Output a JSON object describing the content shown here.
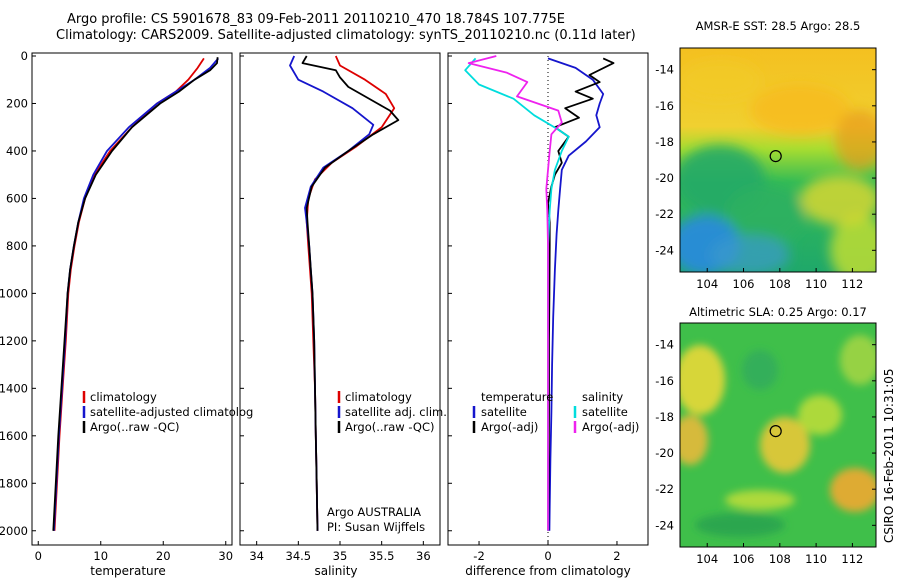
{
  "header": {
    "title_line1": "Argo profile: CS 5901678_83 09-Feb-2011 20110210_470 18.784S 107.775E",
    "title_line2": "Climatology: CARS2009. Satellite-adjusted climatology: synTS_20110210.nc (0.11d later)"
  },
  "chart_data": [
    {
      "type": "line",
      "id": "temperature",
      "xlabel": "temperature",
      "xlim": [
        -1,
        31
      ],
      "xticks": [
        0,
        10,
        20,
        30
      ],
      "ylim": [
        0,
        2060
      ],
      "yticks": [
        0,
        200,
        400,
        600,
        800,
        1000,
        1200,
        1400,
        1600,
        1800,
        2000
      ],
      "y_reversed": true,
      "legend": [
        "climatology",
        "satellite-adjusted climatolog",
        "Argo(..raw -QC)"
      ],
      "series": [
        {
          "name": "climatology",
          "color": "#dd0000",
          "points": [
            [
              26.5,
              10
            ],
            [
              25.5,
              50
            ],
            [
              24,
              100
            ],
            [
              22,
              150
            ],
            [
              19,
              200
            ],
            [
              15,
              300
            ],
            [
              11.5,
              400
            ],
            [
              9,
              500
            ],
            [
              7.5,
              600
            ],
            [
              6.5,
              700
            ],
            [
              5.8,
              800
            ],
            [
              5.2,
              900
            ],
            [
              4.8,
              1000
            ],
            [
              4.4,
              1200
            ],
            [
              3.9,
              1400
            ],
            [
              3.4,
              1600
            ],
            [
              3.0,
              1800
            ],
            [
              2.6,
              2000
            ]
          ]
        },
        {
          "name": "satellite-adjusted climatology",
          "color": "#1515cc",
          "points": [
            [
              28.8,
              10
            ],
            [
              27.5,
              50
            ],
            [
              25,
              100
            ],
            [
              22,
              150
            ],
            [
              19,
              200
            ],
            [
              14.5,
              300
            ],
            [
              11,
              400
            ],
            [
              8.8,
              500
            ],
            [
              7.3,
              600
            ],
            [
              6.4,
              700
            ],
            [
              5.7,
              800
            ],
            [
              5.1,
              900
            ],
            [
              4.7,
              1000
            ],
            [
              4.3,
              1200
            ],
            [
              3.8,
              1400
            ],
            [
              3.3,
              1600
            ],
            [
              2.9,
              1800
            ],
            [
              2.5,
              2000
            ]
          ]
        },
        {
          "name": "Argo(..raw -QC)",
          "color": "#000000",
          "points": [
            [
              28.7,
              5
            ],
            [
              28.6,
              30
            ],
            [
              27.5,
              60
            ],
            [
              25,
              100
            ],
            [
              22.5,
              150
            ],
            [
              19.5,
              200
            ],
            [
              15,
              300
            ],
            [
              11.8,
              400
            ],
            [
              9.2,
              500
            ],
            [
              7.5,
              600
            ],
            [
              6.4,
              700
            ],
            [
              5.7,
              800
            ],
            [
              5.1,
              900
            ],
            [
              4.7,
              1000
            ],
            [
              4.2,
              1200
            ],
            [
              3.7,
              1400
            ],
            [
              3.2,
              1600
            ],
            [
              2.8,
              1800
            ],
            [
              2.4,
              2000
            ]
          ]
        }
      ]
    },
    {
      "type": "line",
      "id": "salinity",
      "xlabel": "salinity",
      "xlim": [
        33.8,
        36.2
      ],
      "xticks": [
        34,
        34.5,
        35,
        35.5,
        36
      ],
      "ylim": [
        0,
        2060
      ],
      "y_reversed": true,
      "legend": [
        "climatology",
        "satellite adj. clim.",
        "Argo(..raw -QC)"
      ],
      "series": [
        {
          "name": "climatology",
          "color": "#dd0000",
          "points": [
            [
              34.95,
              0
            ],
            [
              35.0,
              40
            ],
            [
              35.3,
              100
            ],
            [
              35.55,
              160
            ],
            [
              35.65,
              220
            ],
            [
              35.5,
              300
            ],
            [
              35.2,
              380
            ],
            [
              34.9,
              450
            ],
            [
              34.7,
              520
            ],
            [
              34.62,
              600
            ],
            [
              34.6,
              700
            ],
            [
              34.62,
              800
            ],
            [
              34.64,
              900
            ],
            [
              34.66,
              1000
            ],
            [
              34.68,
              1200
            ],
            [
              34.7,
              1400
            ],
            [
              34.71,
              1600
            ],
            [
              34.72,
              1800
            ],
            [
              34.73,
              2000
            ]
          ]
        },
        {
          "name": "satellite adj. clim.",
          "color": "#1515cc",
          "points": [
            [
              34.45,
              0
            ],
            [
              34.4,
              40
            ],
            [
              34.5,
              100
            ],
            [
              34.8,
              150
            ],
            [
              35.15,
              220
            ],
            [
              35.4,
              290
            ],
            [
              35.35,
              330
            ],
            [
              35.1,
              400
            ],
            [
              34.8,
              470
            ],
            [
              34.65,
              550
            ],
            [
              34.58,
              640
            ],
            [
              34.6,
              700
            ],
            [
              34.63,
              800
            ],
            [
              34.65,
              900
            ],
            [
              34.67,
              1000
            ],
            [
              34.69,
              1200
            ],
            [
              34.7,
              1400
            ],
            [
              34.71,
              1600
            ],
            [
              34.72,
              1800
            ],
            [
              34.73,
              2000
            ]
          ]
        },
        {
          "name": "Argo(..raw -QC)",
          "color": "#000000",
          "points": [
            [
              34.6,
              0
            ],
            [
              34.55,
              30
            ],
            [
              34.95,
              60
            ],
            [
              35.0,
              90
            ],
            [
              35.1,
              130
            ],
            [
              35.45,
              200
            ],
            [
              35.6,
              230
            ],
            [
              35.7,
              270
            ],
            [
              35.4,
              330
            ],
            [
              35.1,
              400
            ],
            [
              34.82,
              470
            ],
            [
              34.66,
              550
            ],
            [
              34.6,
              640
            ],
            [
              34.61,
              700
            ],
            [
              34.63,
              800
            ],
            [
              34.65,
              900
            ],
            [
              34.67,
              1000
            ],
            [
              34.69,
              1200
            ],
            [
              34.7,
              1400
            ],
            [
              34.71,
              1600
            ],
            [
              34.72,
              1800
            ],
            [
              34.73,
              2000
            ]
          ]
        }
      ],
      "annotations": [
        "Argo AUSTRALIA",
        "PI: Susan Wijffels"
      ]
    },
    {
      "type": "line",
      "id": "difference",
      "xlabel": "difference from climatology",
      "xlim": [
        -2.9,
        2.9
      ],
      "xticks": [
        -2,
        0,
        2
      ],
      "ylim": [
        0,
        2060
      ],
      "y_reversed": true,
      "legend_temperature": [
        "temperature",
        "satellite",
        "Argo(-adj)"
      ],
      "legend_salinity": [
        "salinity",
        "satellite",
        "Argo(-adj)"
      ],
      "series": [
        {
          "name": "temperature satellite",
          "color": "#1515cc",
          "points": [
            [
              0,
              10
            ],
            [
              0.8,
              50
            ],
            [
              1.3,
              100
            ],
            [
              1.6,
              160
            ],
            [
              1.5,
              200
            ],
            [
              1.4,
              250
            ],
            [
              1.5,
              300
            ],
            [
              1.1,
              360
            ],
            [
              0.6,
              420
            ],
            [
              0.4,
              480
            ],
            [
              0.35,
              560
            ],
            [
              0.3,
              650
            ],
            [
              0.25,
              750
            ],
            [
              0.2,
              900
            ],
            [
              0.15,
              1100
            ],
            [
              0.12,
              1300
            ],
            [
              0.1,
              1500
            ],
            [
              0.07,
              1700
            ],
            [
              0.05,
              1900
            ],
            [
              0.04,
              2000
            ]
          ]
        },
        {
          "name": "temperature Argo(-adj)",
          "color": "#000000",
          "points": [
            [
              1.6,
              10
            ],
            [
              1.9,
              30
            ],
            [
              1.2,
              80
            ],
            [
              1.5,
              110
            ],
            [
              0.8,
              150
            ],
            [
              1.3,
              180
            ],
            [
              0.5,
              220
            ],
            [
              0.9,
              260
            ],
            [
              0.2,
              300
            ],
            [
              0.6,
              340
            ],
            [
              0.3,
              400
            ],
            [
              0.4,
              450
            ],
            [
              0.2,
              500
            ],
            [
              0.1,
              550
            ],
            [
              0.0,
              620
            ],
            [
              0.05,
              700
            ],
            [
              0.05,
              800
            ],
            [
              0.04,
              1000
            ],
            [
              0.03,
              1200
            ],
            [
              0.03,
              1500
            ],
            [
              0.02,
              1800
            ],
            [
              0.01,
              2000
            ]
          ]
        },
        {
          "name": "salinity satellite",
          "color": "#00dddd",
          "points": [
            [
              -2.1,
              10
            ],
            [
              -2.4,
              60
            ],
            [
              -2.0,
              120
            ],
            [
              -1.0,
              180
            ],
            [
              -0.4,
              250
            ],
            [
              0.3,
              310
            ],
            [
              0.6,
              340
            ],
            [
              0.4,
              400
            ],
            [
              0.2,
              480
            ],
            [
              0.1,
              560
            ],
            [
              0.05,
              650
            ],
            [
              0.0,
              800
            ],
            [
              0.0,
              1000
            ],
            [
              0.0,
              1500
            ],
            [
              0.0,
              2000
            ]
          ]
        },
        {
          "name": "salinity Argo(-adj)",
          "color": "#ee22ee",
          "points": [
            [
              -1.5,
              0
            ],
            [
              -2.3,
              30
            ],
            [
              -1.2,
              70
            ],
            [
              -0.6,
              110
            ],
            [
              -0.9,
              170
            ],
            [
              0.3,
              230
            ],
            [
              0.4,
              280
            ],
            [
              0.1,
              330
            ],
            [
              0.05,
              400
            ],
            [
              0.0,
              480
            ],
            [
              -0.05,
              560
            ],
            [
              -0.02,
              650
            ],
            [
              0.0,
              800
            ],
            [
              0.0,
              1000
            ],
            [
              0.0,
              1500
            ],
            [
              0.0,
              2000
            ]
          ]
        }
      ]
    },
    {
      "type": "heatmap",
      "id": "sst_map",
      "title": "AMSR-E SST: 28.5 Argo: 28.5",
      "xticks": [
        104,
        106,
        108,
        110,
        112
      ],
      "yticks": [
        -14,
        -16,
        -18,
        -20,
        -22,
        -24
      ],
      "xlim": [
        102.5,
        113.3
      ],
      "ylim": [
        -25.2,
        -12.8
      ],
      "marker": [
        107.775,
        -18.784
      ]
    },
    {
      "type": "heatmap",
      "id": "sla_map",
      "title": "Altimetric SLA: 0.25 Argo: 0.17",
      "xticks": [
        104,
        106,
        108,
        110,
        112
      ],
      "yticks": [
        -14,
        -16,
        -18,
        -20,
        -22,
        -24
      ],
      "xlim": [
        102.5,
        113.3
      ],
      "ylim": [
        -25.2,
        -12.8
      ],
      "marker": [
        107.775,
        -18.784
      ]
    }
  ],
  "credit": "CSIRO 16-Feb-2011 10:31:05"
}
